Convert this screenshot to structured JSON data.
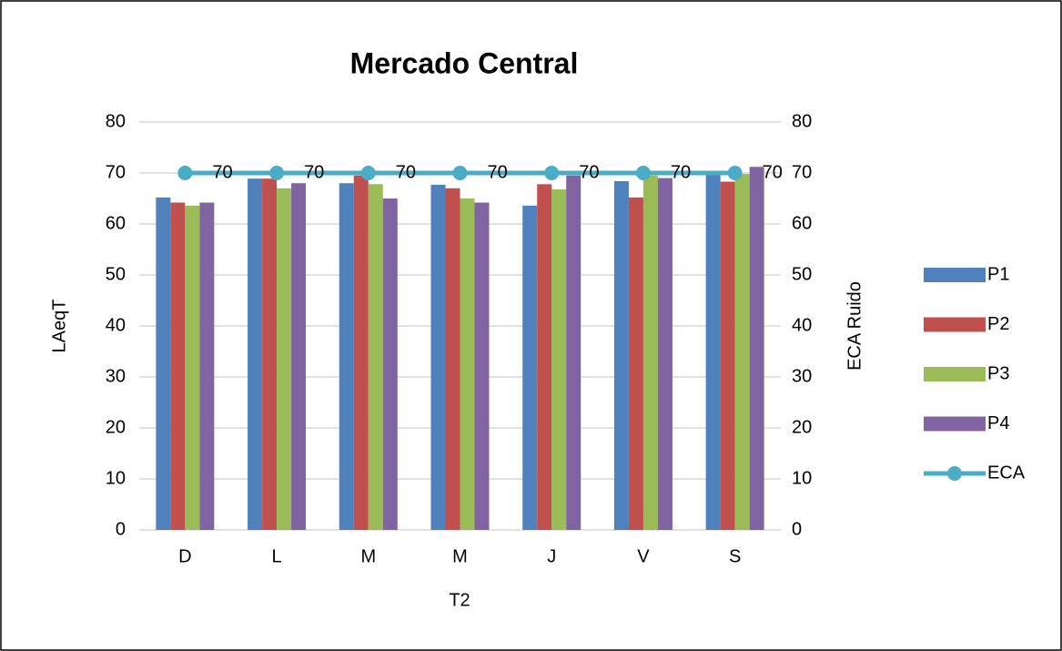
{
  "chart_data": {
    "type": "bar",
    "title": "Mercado Central",
    "x_label": "T2",
    "y_label": "LAeqT",
    "y2_label": "ECA Ruido",
    "categories": [
      "D",
      "L",
      "M",
      "M",
      "J",
      "V",
      "S"
    ],
    "series": [
      {
        "name": "P1",
        "color": "#4f81bd",
        "values": [
          65.2,
          68.9,
          68.0,
          67.7,
          63.6,
          68.4,
          69.8
        ]
      },
      {
        "name": "P2",
        "color": "#c0504d",
        "values": [
          64.2,
          68.9,
          69.5,
          67.0,
          67.8,
          65.2,
          68.3
        ]
      },
      {
        "name": "P3",
        "color": "#9bbb59",
        "values": [
          63.6,
          67.0,
          67.8,
          65.0,
          66.8,
          69.5,
          69.8
        ]
      },
      {
        "name": "P4",
        "color": "#8064a2",
        "values": [
          64.2,
          68.0,
          65.0,
          64.2,
          69.5,
          69.0,
          71.2
        ]
      },
      {
        "name": "ECA",
        "color": "#4bacc6",
        "type": "line",
        "axis": "y2",
        "data_labels": true,
        "values": [
          70,
          70,
          70,
          70,
          70,
          70,
          70
        ]
      }
    ],
    "ylim": [
      0,
      80
    ],
    "yticks": [
      0,
      10,
      20,
      30,
      40,
      50,
      60,
      70,
      80
    ],
    "y2lim": [
      0,
      80
    ],
    "y2ticks": [
      0,
      10,
      20,
      30,
      40,
      50,
      60,
      70,
      80
    ],
    "grid": true,
    "legend": "right"
  }
}
